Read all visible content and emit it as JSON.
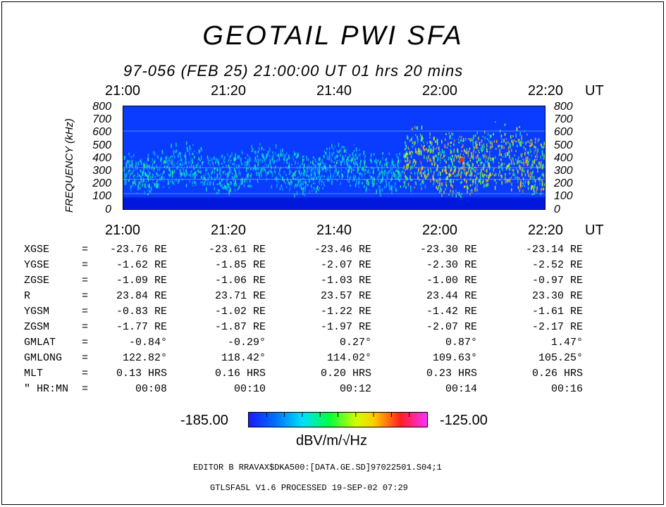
{
  "title": "GEOTAIL PWI SFA",
  "subtitle": "97-056 (FEB 25) 21:00:00 UT    01 hrs  20 mins",
  "time_ticks": [
    "21:00",
    "21:20",
    "21:40",
    "22:00",
    "22:20"
  ],
  "time_unit": "UT",
  "freq_ticks": [
    "800",
    "700",
    "600",
    "500",
    "400",
    "300",
    "200",
    "100",
    "0"
  ],
  "freq_label": "FREQUENCY (kHz)",
  "ephemeris": {
    "rows": [
      {
        "label": "XGSE",
        "eq": "=",
        "values": [
          "-23.76 RE",
          "-23.61 RE",
          "-23.46 RE",
          "-23.30 RE",
          "-23.14 RE"
        ]
      },
      {
        "label": "YGSE",
        "eq": "=",
        "values": [
          "-1.62 RE",
          "-1.85 RE",
          "-2.07 RE",
          "-2.30 RE",
          "-2.52 RE"
        ]
      },
      {
        "label": "ZGSE",
        "eq": "=",
        "values": [
          "-1.09 RE",
          "-1.06 RE",
          "-1.03 RE",
          "-1.00 RE",
          "-0.97 RE"
        ]
      },
      {
        "label": "R",
        "eq": "=",
        "values": [
          "23.84 RE",
          "23.71 RE",
          "23.57 RE",
          "23.44 RE",
          "23.30 RE"
        ]
      },
      {
        "label": "YGSM",
        "eq": "=",
        "values": [
          "-0.83 RE",
          "-1.02 RE",
          "-1.22 RE",
          "-1.42 RE",
          "-1.61 RE"
        ]
      },
      {
        "label": "ZGSM",
        "eq": "=",
        "values": [
          "-1.77 RE",
          "-1.87 RE",
          "-1.97 RE",
          "-2.07 RE",
          "-2.17 RE"
        ]
      },
      {
        "label": "GMLAT",
        "eq": "=",
        "values": [
          "-0.84°",
          "-0.29°",
          "0.27°",
          "0.87°",
          "1.47°"
        ]
      },
      {
        "label": "GMLONG",
        "eq": "=",
        "values": [
          "122.82°",
          "118.42°",
          "114.02°",
          "109.63°",
          "105.25°"
        ]
      },
      {
        "label": "MLT",
        "eq": "=",
        "values": [
          "0.13 HRS",
          "0.16 HRS",
          "0.20 HRS",
          "0.23 HRS",
          "0.26 HRS"
        ]
      },
      {
        "label": "\" HR:MN",
        "eq": "=",
        "values": [
          "00:08",
          "00:10",
          "00:12",
          "00:14",
          "00:16"
        ]
      }
    ]
  },
  "colorbar": {
    "min_label": "-185.00",
    "max_label": "-125.00",
    "unit_label": "dBV/m/√Hz"
  },
  "footer": {
    "editor_line": "EDITOR B     RRAVAX$DKA500:[DATA.GE.SD]97022501.S04;1",
    "version_line": "GTLSFA5L V1.6       PROCESSED 19-SEP-02   07:29"
  },
  "chart_data": {
    "type": "heatmap",
    "title": "GEOTAIL PWI SFA",
    "x_range": [
      "21:00",
      "22:20"
    ],
    "xlabel": "UT",
    "ylabel": "FREQUENCY (kHz)",
    "ylim": [
      0,
      800
    ],
    "color_range": [
      -185.0,
      -125.0
    ],
    "color_unit": "dBV/m/√Hz",
    "emission_bands": [
      {
        "start": "21:00",
        "end": "21:53",
        "f_low": 150,
        "f_high": 500,
        "level": "low"
      },
      {
        "start": "21:53",
        "end": "22:20",
        "f_low": 100,
        "f_high": 650,
        "level": "high"
      }
    ]
  }
}
